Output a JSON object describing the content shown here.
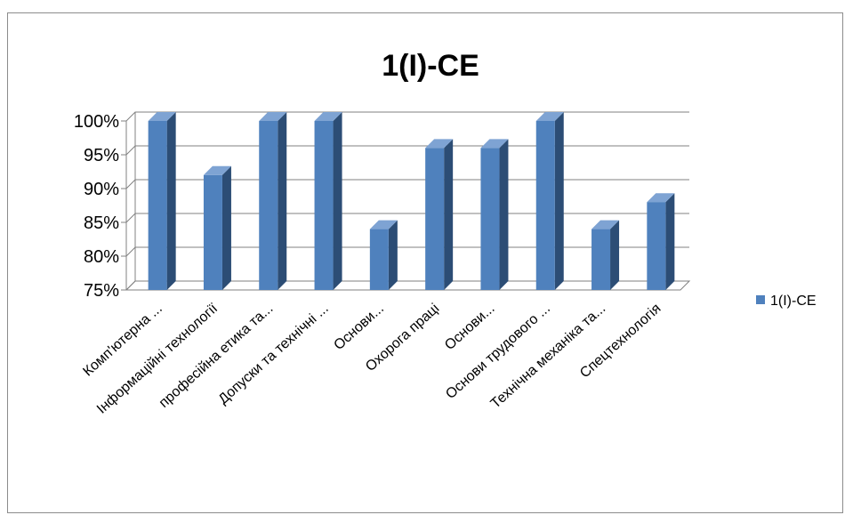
{
  "chart_data": {
    "type": "bar",
    "title": "1(I)-CE",
    "categories": [
      "Комп'ютерна ...",
      "Інформаційні технології",
      "професійна етика та...",
      "Допуски та технічні ...",
      "Основи...",
      "Охорога праці",
      "Основи...",
      "Основи трудового ...",
      "Технічна механіка та...",
      "Спецтехнологія"
    ],
    "series": [
      {
        "name": "1(I)-CE",
        "values": [
          100,
          92,
          100,
          100,
          84,
          96,
          96,
          100,
          84,
          88
        ]
      }
    ],
    "y_ticks": [
      "75%",
      "80%",
      "85%",
      "90%",
      "95%",
      "100%"
    ],
    "ylim": [
      75,
      100
    ],
    "y_unit": "%",
    "grid": true,
    "legend_position": "right",
    "colors": {
      "bar_front": "#4f81bd",
      "bar_side": "#2c4d75",
      "bar_top": "#7ea3d3",
      "grid": "#808080"
    }
  }
}
